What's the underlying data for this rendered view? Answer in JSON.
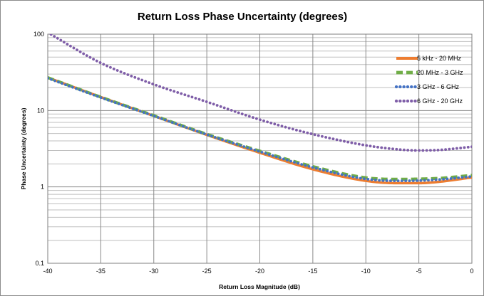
{
  "chart_data": {
    "type": "line",
    "title": "Return Loss Phase Uncertainty (degrees)",
    "xlabel": "Return Loss Magnitude (dB)",
    "ylabel": "Phase Uncertainty (degrees)",
    "xlim": [
      -40,
      0
    ],
    "ylim": [
      0.1,
      100
    ],
    "y_scale": "log",
    "x_ticks": [
      -40,
      -35,
      -30,
      -25,
      -20,
      -15,
      -10,
      -5,
      0
    ],
    "y_ticks": [
      0.1,
      1,
      10,
      100
    ],
    "x_tick_labels": [
      "-40",
      "-35",
      "-30",
      "-25",
      "-20",
      "-15",
      "-10",
      "-5",
      "0"
    ],
    "y_tick_labels": [
      "0.1",
      "1",
      "10",
      "100"
    ],
    "grid": true,
    "legend_position": "right",
    "series": [
      {
        "name": "5 kHz - 20 MHz",
        "color": "#ed7d31",
        "style": "solid",
        "x": [
          -40,
          -35,
          -30,
          -25,
          -20,
          -15,
          -10,
          -7,
          -5,
          -3,
          0
        ],
        "y": [
          27,
          15,
          8.5,
          4.8,
          2.8,
          1.7,
          1.2,
          1.12,
          1.12,
          1.17,
          1.33
        ]
      },
      {
        "name": "20 MHz - 3 GHz",
        "color": "#70ad47",
        "style": "dashed",
        "x": [
          -40,
          -35,
          -30,
          -25,
          -20,
          -15,
          -10,
          -7,
          -5,
          -3,
          0
        ],
        "y": [
          27,
          15,
          8.6,
          4.9,
          2.95,
          1.85,
          1.32,
          1.26,
          1.27,
          1.3,
          1.42
        ]
      },
      {
        "name": "3 GHz - 6 GHz",
        "color": "#4472c4",
        "style": "dotted",
        "x": [
          -40,
          -35,
          -30,
          -25,
          -20,
          -15,
          -10,
          -7,
          -5,
          -3,
          0
        ],
        "y": [
          26.5,
          14.8,
          8.5,
          4.85,
          2.9,
          1.8,
          1.27,
          1.2,
          1.21,
          1.25,
          1.37
        ]
      },
      {
        "name": "6 GHz - 20 GHz",
        "color": "#7f5ea8",
        "style": "dotted",
        "x": [
          -40,
          -35,
          -30,
          -25,
          -20,
          -15,
          -10,
          -7,
          -5,
          -3,
          0
        ],
        "y": [
          105,
          42,
          22,
          13,
          7.6,
          4.9,
          3.5,
          3.1,
          3.0,
          3.05,
          3.35
        ]
      }
    ]
  }
}
